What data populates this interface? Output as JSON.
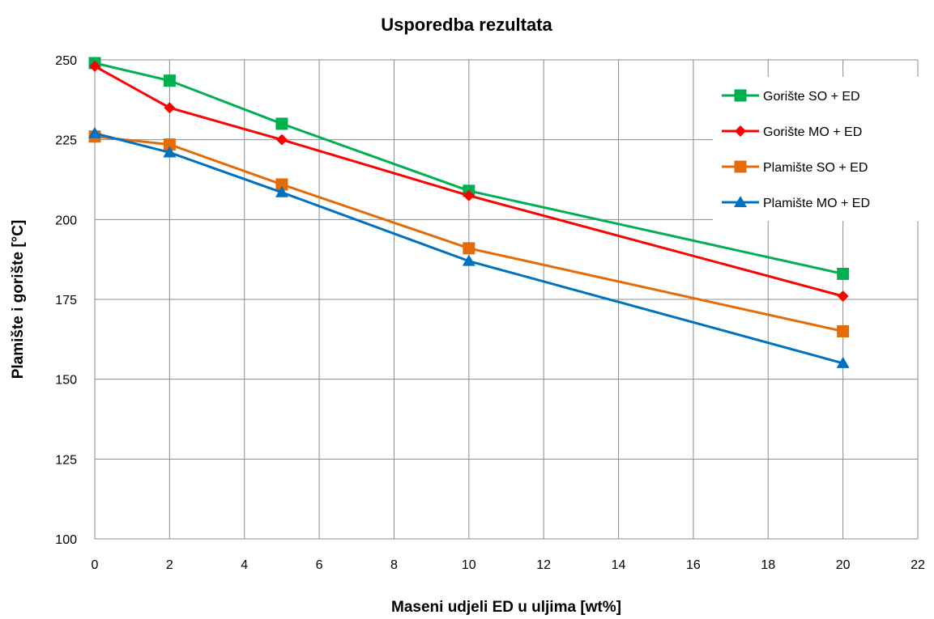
{
  "chart_data": {
    "type": "line",
    "title": "Usporedba rezultata",
    "xlabel": "Maseni udjeli ED u uljima [wt%]",
    "ylabel": "Plamište i gorište [°C]",
    "xlim": [
      0,
      22
    ],
    "ylim": [
      100,
      250
    ],
    "xticks": [
      0,
      2,
      4,
      6,
      8,
      10,
      12,
      14,
      16,
      18,
      20,
      22
    ],
    "yticks": [
      100,
      125,
      150,
      175,
      200,
      225,
      250
    ],
    "grid": true,
    "legend_position": "top-right",
    "series": [
      {
        "name": "Gorište SO + ED",
        "color": "#00b050",
        "marker": "square",
        "x": [
          0,
          2,
          5,
          10,
          20
        ],
        "y": [
          249,
          243.5,
          230,
          209,
          183
        ]
      },
      {
        "name": "Gorište MO + ED",
        "color": "#ff0000",
        "marker": "diamond",
        "x": [
          0,
          2,
          5,
          10,
          20
        ],
        "y": [
          248,
          235,
          225,
          207.5,
          176
        ]
      },
      {
        "name": "Plamište SO + ED",
        "color": "#e36c09",
        "marker": "square",
        "x": [
          0,
          2,
          5,
          10,
          20
        ],
        "y": [
          226,
          223.5,
          211,
          191,
          165
        ]
      },
      {
        "name": "Plamište MO + ED",
        "color": "#0070c0",
        "marker": "triangle",
        "x": [
          0,
          2,
          5,
          10,
          20
        ],
        "y": [
          227,
          221,
          208.5,
          187,
          155
        ]
      }
    ]
  }
}
